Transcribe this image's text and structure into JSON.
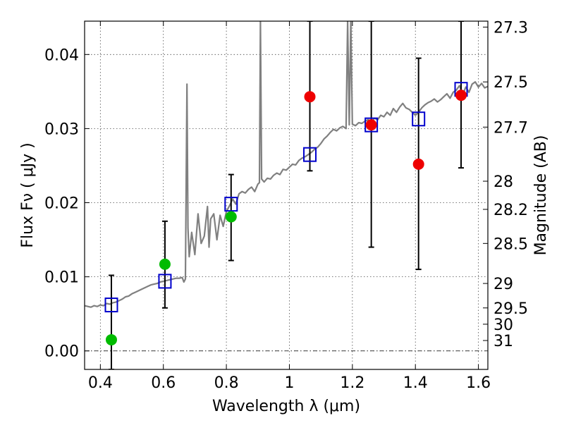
{
  "chart_data": {
    "type": "scatter",
    "xlabel": "Wavelength  λ (μm)",
    "ylabel": "Flux  Fν  ( μJy )",
    "right_ylabel": "Magnitude (AB)",
    "xlim": [
      0.35,
      1.63
    ],
    "ylim": [
      -0.0025,
      0.0445
    ],
    "grid": true,
    "x_ticks": [
      "0.4",
      "0.6",
      "0.8",
      "1",
      "1.2",
      "1.4",
      "1.6"
    ],
    "x_tick_values": [
      0.4,
      0.6,
      0.8,
      1.0,
      1.2,
      1.4,
      1.6
    ],
    "y_ticks": [
      "0.00",
      "0.01",
      "0.02",
      "0.03",
      "0.04"
    ],
    "y_tick_values": [
      0.0,
      0.01,
      0.02,
      0.03,
      0.04
    ],
    "right_ticks": [
      {
        "label": "27.3",
        "flux": 0.0437
      },
      {
        "label": "27.5",
        "flux": 0.0363
      },
      {
        "label": "27.7",
        "flux": 0.0302
      },
      {
        "label": "28",
        "flux": 0.0229
      },
      {
        "label": "28.2",
        "flux": 0.0191
      },
      {
        "label": "28.5",
        "flux": 0.0145
      },
      {
        "label": "29",
        "flux": 0.0091
      },
      {
        "label": "29.5",
        "flux": 0.0058
      },
      {
        "label": "30",
        "flux": 0.0036
      },
      {
        "label": "31",
        "flux": 0.0014
      }
    ],
    "series": [
      {
        "color": "#808080",
        "kind": "spectrum",
        "points": [
          [
            0.35,
            0.0061
          ],
          [
            0.36,
            0.006
          ],
          [
            0.37,
            0.0059
          ],
          [
            0.38,
            0.0061
          ],
          [
            0.39,
            0.006
          ],
          [
            0.4,
            0.0062
          ],
          [
            0.41,
            0.0061
          ],
          [
            0.42,
            0.0064
          ],
          [
            0.43,
            0.0063
          ],
          [
            0.44,
            0.0065
          ],
          [
            0.45,
            0.0066
          ],
          [
            0.46,
            0.0068
          ],
          [
            0.47,
            0.007
          ],
          [
            0.48,
            0.0073
          ],
          [
            0.49,
            0.0074
          ],
          [
            0.5,
            0.0077
          ],
          [
            0.51,
            0.0079
          ],
          [
            0.52,
            0.0081
          ],
          [
            0.53,
            0.0083
          ],
          [
            0.54,
            0.0085
          ],
          [
            0.55,
            0.0087
          ],
          [
            0.56,
            0.0089
          ],
          [
            0.57,
            0.009
          ],
          [
            0.58,
            0.0091
          ],
          [
            0.59,
            0.0093
          ],
          [
            0.6,
            0.0094
          ],
          [
            0.61,
            0.0095
          ],
          [
            0.62,
            0.0096
          ],
          [
            0.63,
            0.0097
          ],
          [
            0.64,
            0.0098
          ],
          [
            0.65,
            0.0098
          ],
          [
            0.66,
            0.0099
          ],
          [
            0.665,
            0.0093
          ],
          [
            0.67,
            0.0097
          ],
          [
            0.675,
            0.036
          ],
          [
            0.678,
            0.0166
          ],
          [
            0.682,
            0.0127
          ],
          [
            0.69,
            0.016
          ],
          [
            0.7,
            0.013
          ],
          [
            0.71,
            0.0185
          ],
          [
            0.72,
            0.0145
          ],
          [
            0.73,
            0.0155
          ],
          [
            0.74,
            0.0195
          ],
          [
            0.745,
            0.014
          ],
          [
            0.75,
            0.0178
          ],
          [
            0.76,
            0.0185
          ],
          [
            0.77,
            0.015
          ],
          [
            0.78,
            0.0183
          ],
          [
            0.79,
            0.0168
          ],
          [
            0.8,
            0.0188
          ],
          [
            0.81,
            0.0196
          ],
          [
            0.82,
            0.0205
          ],
          [
            0.83,
            0.0198
          ],
          [
            0.84,
            0.0212
          ],
          [
            0.85,
            0.0215
          ],
          [
            0.86,
            0.0213
          ],
          [
            0.87,
            0.0218
          ],
          [
            0.88,
            0.0221
          ],
          [
            0.89,
            0.0215
          ],
          [
            0.9,
            0.0225
          ],
          [
            0.905,
            0.0227
          ],
          [
            0.908,
            0.0445
          ],
          [
            0.912,
            0.0232
          ],
          [
            0.92,
            0.0228
          ],
          [
            0.93,
            0.0233
          ],
          [
            0.94,
            0.0232
          ],
          [
            0.95,
            0.0237
          ],
          [
            0.96,
            0.024
          ],
          [
            0.97,
            0.0238
          ],
          [
            0.98,
            0.0245
          ],
          [
            0.99,
            0.0244
          ],
          [
            1.0,
            0.0248
          ],
          [
            1.01,
            0.0252
          ],
          [
            1.02,
            0.0251
          ],
          [
            1.03,
            0.0257
          ],
          [
            1.04,
            0.026
          ],
          [
            1.05,
            0.0262
          ],
          [
            1.06,
            0.0265
          ],
          [
            1.07,
            0.0268
          ],
          [
            1.08,
            0.0272
          ],
          [
            1.09,
            0.0275
          ],
          [
            1.1,
            0.028
          ],
          [
            1.11,
            0.0286
          ],
          [
            1.12,
            0.029
          ],
          [
            1.13,
            0.0295
          ],
          [
            1.14,
            0.0299
          ],
          [
            1.15,
            0.0297
          ],
          [
            1.16,
            0.0301
          ],
          [
            1.17,
            0.0303
          ],
          [
            1.18,
            0.03
          ],
          [
            1.185,
            0.0445
          ],
          [
            1.19,
            0.0305
          ],
          [
            1.195,
            0.0445
          ],
          [
            1.2,
            0.0306
          ],
          [
            1.21,
            0.0304
          ],
          [
            1.22,
            0.0308
          ],
          [
            1.23,
            0.0307
          ],
          [
            1.24,
            0.031
          ],
          [
            1.25,
            0.0312
          ],
          [
            1.26,
            0.0309
          ],
          [
            1.27,
            0.0314
          ],
          [
            1.28,
            0.0312
          ],
          [
            1.29,
            0.0318
          ],
          [
            1.3,
            0.0316
          ],
          [
            1.31,
            0.0322
          ],
          [
            1.32,
            0.0318
          ],
          [
            1.33,
            0.0327
          ],
          [
            1.34,
            0.0322
          ],
          [
            1.35,
            0.0329
          ],
          [
            1.36,
            0.0334
          ],
          [
            1.37,
            0.0328
          ],
          [
            1.38,
            0.0326
          ],
          [
            1.39,
            0.0322
          ],
          [
            1.4,
            0.0318
          ],
          [
            1.41,
            0.0322
          ],
          [
            1.42,
            0.0328
          ],
          [
            1.43,
            0.0332
          ],
          [
            1.44,
            0.0335
          ],
          [
            1.45,
            0.0337
          ],
          [
            1.46,
            0.034
          ],
          [
            1.47,
            0.0336
          ],
          [
            1.48,
            0.0339
          ],
          [
            1.49,
            0.0343
          ],
          [
            1.5,
            0.0347
          ],
          [
            1.51,
            0.0341
          ],
          [
            1.52,
            0.0349
          ],
          [
            1.53,
            0.0352
          ],
          [
            1.54,
            0.0358
          ],
          [
            1.55,
            0.0346
          ],
          [
            1.56,
            0.0356
          ],
          [
            1.57,
            0.0349
          ],
          [
            1.58,
            0.036
          ],
          [
            1.59,
            0.0363
          ],
          [
            1.6,
            0.0356
          ],
          [
            1.61,
            0.0361
          ],
          [
            1.62,
            0.0355
          ],
          [
            1.63,
            0.0357
          ]
        ]
      },
      {
        "color": "#0000cc",
        "kind": "model-photometry",
        "marker": "open-square",
        "x": [
          0.435,
          0.605,
          0.815,
          1.065,
          1.26,
          1.41,
          1.545
        ],
        "values": [
          0.0062,
          0.0094,
          0.0198,
          0.0265,
          0.0305,
          0.0313,
          0.0353
        ]
      },
      {
        "color": "#00bb00",
        "kind": "detections",
        "marker": "filled-circle",
        "x": [
          0.435,
          0.605,
          0.815
        ],
        "values": [
          0.0015,
          0.0117,
          0.0181
        ]
      },
      {
        "color": "#ee0000",
        "kind": "detections",
        "marker": "filled-circle",
        "x": [
          1.065,
          1.26,
          1.41,
          1.545
        ],
        "values": [
          0.0343,
          0.0305,
          0.0252,
          0.0345
        ]
      }
    ],
    "error_bars": [
      {
        "x": 0.435,
        "low": -0.0025,
        "high": 0.0102
      },
      {
        "x": 0.605,
        "low": 0.0058,
        "high": 0.0175
      },
      {
        "x": 0.815,
        "low": 0.0122,
        "high": 0.0238
      },
      {
        "x": 1.065,
        "low": 0.0243,
        "high": 0.0445
      },
      {
        "x": 1.26,
        "low": 0.014,
        "high": 0.0445
      },
      {
        "x": 1.41,
        "low": 0.011,
        "high": 0.0395
      },
      {
        "x": 1.545,
        "low": 0.0247,
        "high": 0.0445
      }
    ],
    "reference_line": {
      "flux": 0.0
    }
  }
}
